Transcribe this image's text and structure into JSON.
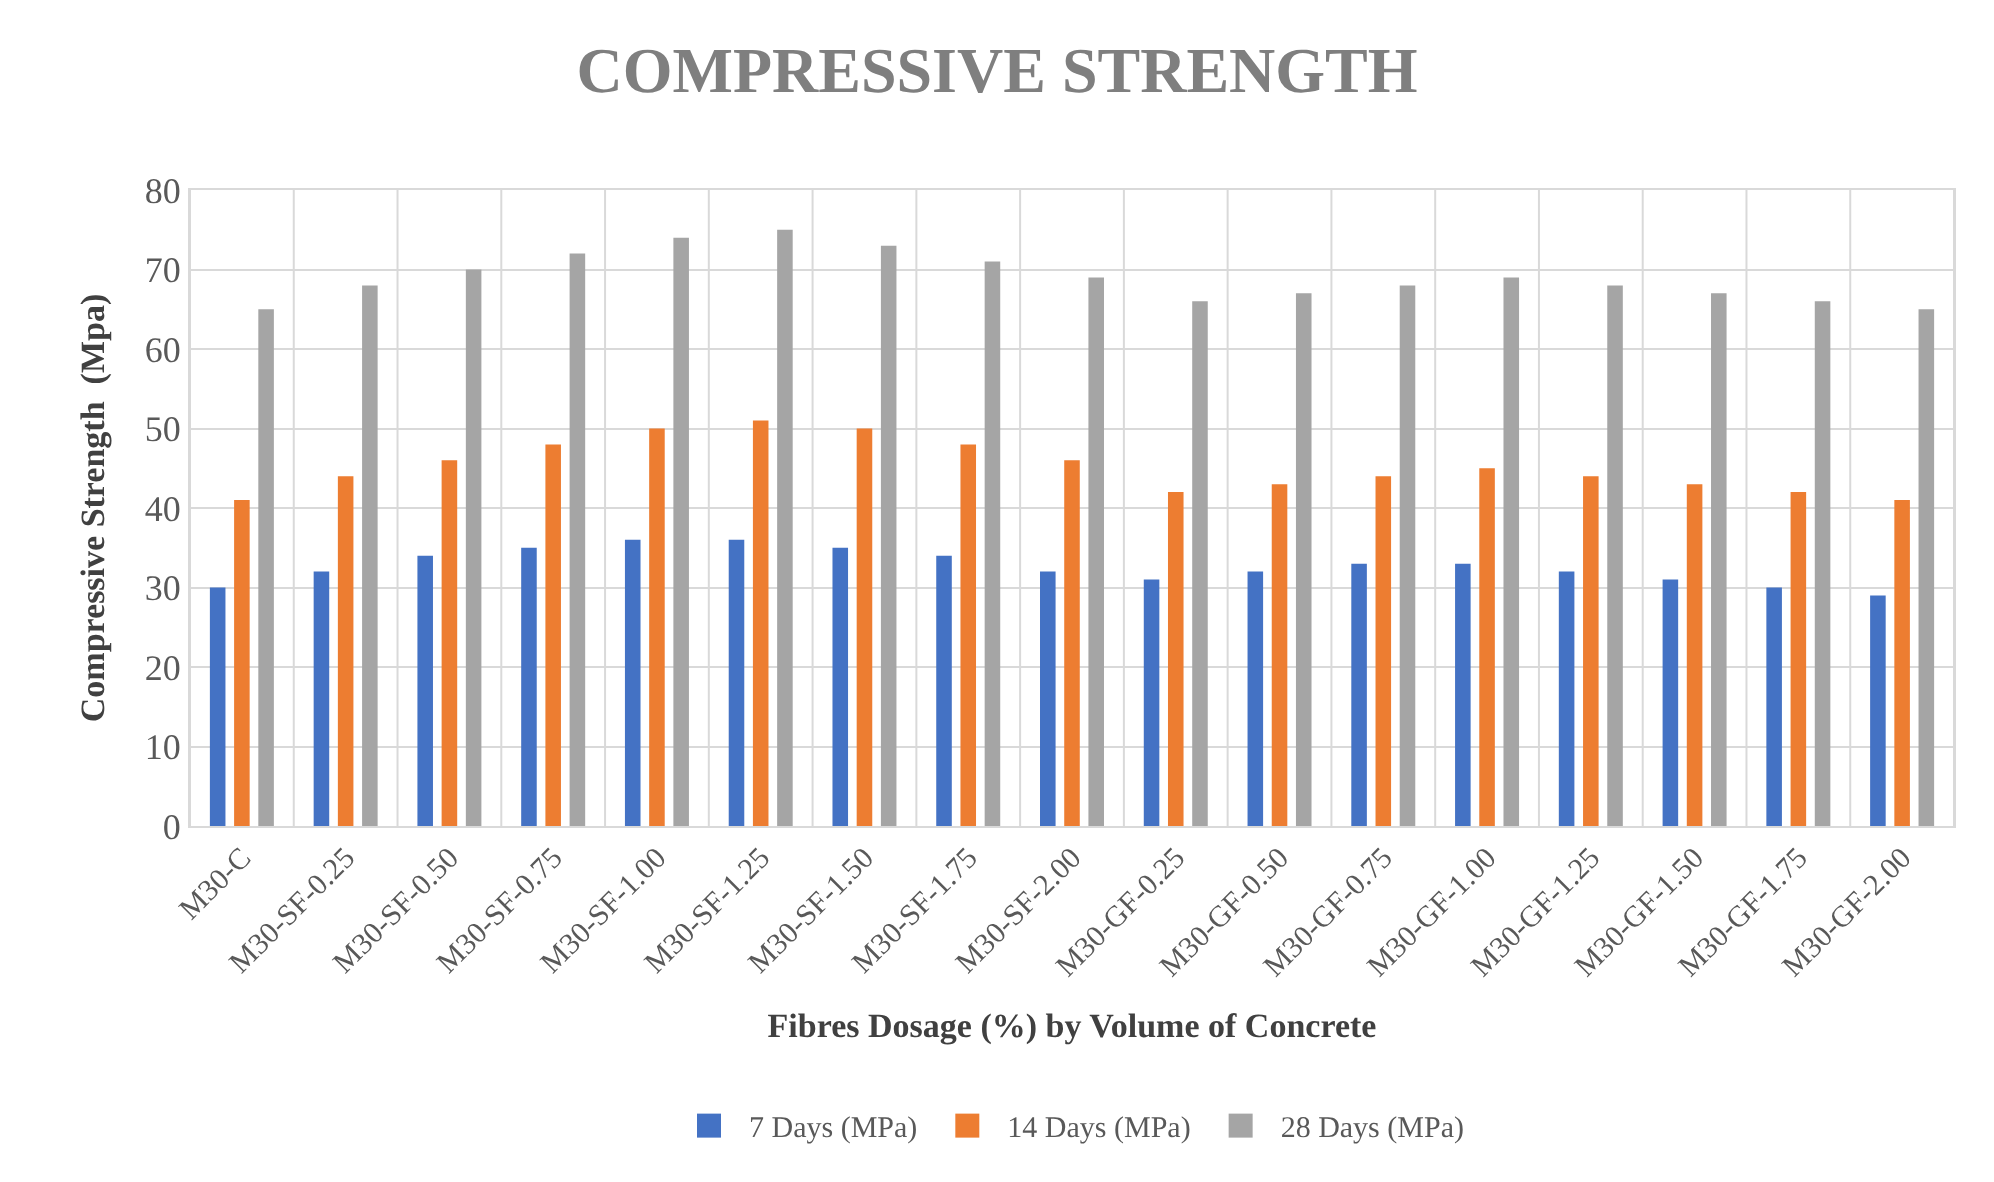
{
  "chart_data": {
    "type": "bar",
    "title": "COMPRESSIVE STRENGTH",
    "xlabel": "Fibres Dosage (%) by Volume of Concrete",
    "ylabel": "Compressive Strength  (Mpa)",
    "categories": [
      "M30-C",
      "M30-SF-0.25",
      "M30-SF-0.50",
      "M30-SF-0.75",
      "M30-SF-1.00",
      "M30-SF-1.25",
      "M30-SF-1.50",
      "M30-SF-1.75",
      "M30-SF-2.00",
      "M30-GF-0.25",
      "M30-GF-0.50",
      "M30-GF-0.75",
      "M30-GF-1.00",
      "M30-GF-1.25",
      "M30-GF-1.50",
      "M30-GF-1.75",
      "M30-GF-2.00"
    ],
    "series": [
      {
        "name": "7 Days (MPa)",
        "color": "#4472c4",
        "values": [
          30,
          32,
          34,
          35,
          36,
          36,
          35,
          34,
          32,
          31,
          32,
          33,
          33,
          32,
          31,
          30,
          29
        ]
      },
      {
        "name": "14 Days (MPa)",
        "color": "#ed7d31",
        "values": [
          41,
          44,
          46,
          48,
          50,
          51,
          50,
          48,
          46,
          42,
          43,
          44,
          45,
          44,
          43,
          42,
          41
        ]
      },
      {
        "name": "28 Days (MPa)",
        "color": "#a5a5a5",
        "values": [
          65,
          68,
          70,
          72,
          74,
          75,
          73,
          71,
          69,
          66,
          67,
          68,
          69,
          68,
          67,
          66,
          65
        ]
      }
    ],
    "ylim": [
      0,
      80
    ],
    "yticks": [
      0,
      10,
      20,
      30,
      40,
      50,
      60,
      70,
      80
    ],
    "grid": true,
    "legend": "bottom"
  }
}
